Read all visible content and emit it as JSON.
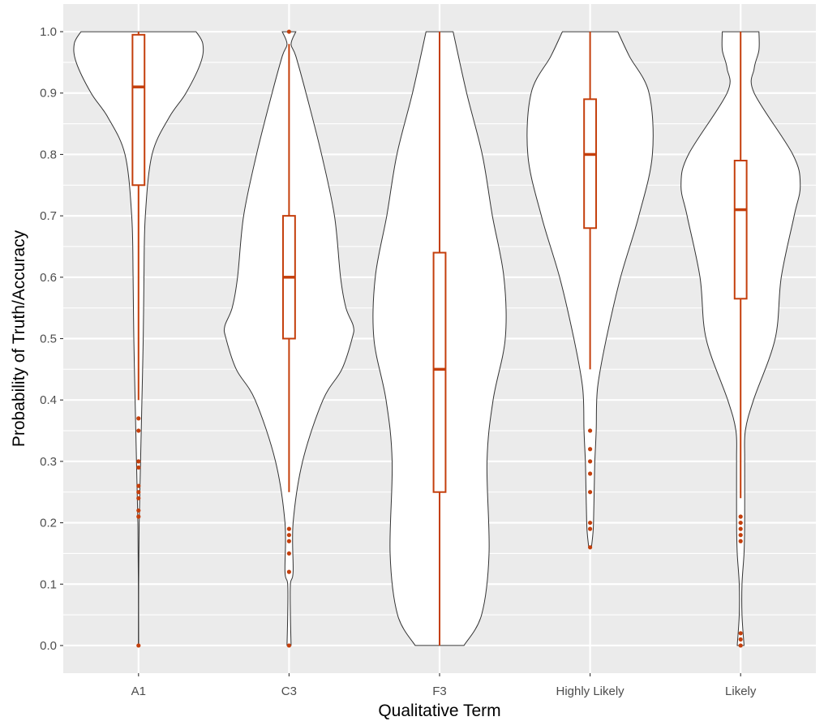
{
  "chart_data": {
    "type": "violin",
    "xlabel": "Qualitative Term",
    "ylabel": "Probability of Truth/Accuracy",
    "ylim": [
      -0.045,
      1.045
    ],
    "y_ticks": [
      "0.0",
      "0.1",
      "0.2",
      "0.3",
      "0.4",
      "0.5",
      "0.6",
      "0.7",
      "0.8",
      "0.9",
      "1.0"
    ],
    "y_tick_values": [
      0,
      0.1,
      0.2,
      0.3,
      0.4,
      0.5,
      0.6,
      0.7,
      0.8,
      0.9,
      1.0
    ],
    "categories": [
      "A1",
      "C3",
      "F3",
      "Highly Likely",
      "Likely"
    ],
    "grid": true,
    "colors": {
      "panel": "#ebebeb",
      "grid": "#ffffff",
      "violin_fill": "#ffffff",
      "violin_line": "#333333",
      "box": "#c43f0c"
    },
    "groups": [
      {
        "name": "A1",
        "violin_profile": [
          [
            0.0,
            0.002
          ],
          [
            0.1,
            0.002
          ],
          [
            0.2,
            0.01
          ],
          [
            0.3,
            0.03
          ],
          [
            0.4,
            0.05
          ],
          [
            0.5,
            0.07
          ],
          [
            0.6,
            0.08
          ],
          [
            0.7,
            0.1
          ],
          [
            0.8,
            0.2
          ],
          [
            0.86,
            0.45
          ],
          [
            0.9,
            0.7
          ],
          [
            0.95,
            0.92
          ],
          [
            0.98,
            0.95
          ],
          [
            1.0,
            0.85
          ]
        ],
        "box": {
          "q1": 0.75,
          "median": 0.91,
          "q3": 0.995,
          "whisker_low": 0.4,
          "whisker_high": 1.0
        },
        "outliers": [
          0.37,
          0.35,
          0.3,
          0.29,
          0.26,
          0.25,
          0.24,
          0.22,
          0.21,
          0.0
        ]
      },
      {
        "name": "C3",
        "violin_profile": [
          [
            0.0,
            0.03
          ],
          [
            0.05,
            0.02
          ],
          [
            0.1,
            0.02
          ],
          [
            0.12,
            0.06
          ],
          [
            0.2,
            0.06
          ],
          [
            0.3,
            0.2
          ],
          [
            0.4,
            0.5
          ],
          [
            0.45,
            0.78
          ],
          [
            0.5,
            0.93
          ],
          [
            0.52,
            0.95
          ],
          [
            0.55,
            0.84
          ],
          [
            0.6,
            0.76
          ],
          [
            0.7,
            0.67
          ],
          [
            0.8,
            0.48
          ],
          [
            0.9,
            0.25
          ],
          [
            0.96,
            0.1
          ],
          [
            0.98,
            0.03
          ],
          [
            1.0,
            0.1
          ]
        ],
        "box": {
          "q1": 0.5,
          "median": 0.6,
          "q3": 0.7,
          "whisker_low": 0.25,
          "whisker_high": 0.98
        },
        "outliers": [
          1.0,
          0.19,
          0.18,
          0.17,
          0.15,
          0.12,
          0.0
        ]
      },
      {
        "name": "F3",
        "violin_profile": [
          [
            0.0,
            0.36
          ],
          [
            0.05,
            0.62
          ],
          [
            0.15,
            0.73
          ],
          [
            0.3,
            0.7
          ],
          [
            0.4,
            0.79
          ],
          [
            0.5,
            0.97
          ],
          [
            0.6,
            0.95
          ],
          [
            0.7,
            0.78
          ],
          [
            0.8,
            0.63
          ],
          [
            0.9,
            0.4
          ],
          [
            1.0,
            0.2
          ]
        ],
        "box": {
          "q1": 0.25,
          "median": 0.45,
          "q3": 0.64,
          "whisker_low": 0.0,
          "whisker_high": 1.0
        },
        "outliers": []
      },
      {
        "name": "Highly Likely",
        "violin_profile": [
          [
            0.16,
            0.02
          ],
          [
            0.18,
            0.04
          ],
          [
            0.2,
            0.05
          ],
          [
            0.25,
            0.06
          ],
          [
            0.3,
            0.07
          ],
          [
            0.35,
            0.09
          ],
          [
            0.42,
            0.11
          ],
          [
            0.5,
            0.24
          ],
          [
            0.6,
            0.45
          ],
          [
            0.7,
            0.72
          ],
          [
            0.8,
            0.92
          ],
          [
            0.9,
            0.87
          ],
          [
            0.96,
            0.58
          ],
          [
            1.0,
            0.41
          ]
        ],
        "box": {
          "q1": 0.68,
          "median": 0.8,
          "q3": 0.89,
          "whisker_low": 0.45,
          "whisker_high": 1.0
        },
        "outliers": [
          0.35,
          0.32,
          0.3,
          0.28,
          0.25,
          0.2,
          0.19,
          0.16
        ]
      },
      {
        "name": "Likely",
        "violin_profile": [
          [
            0.0,
            0.05
          ],
          [
            0.05,
            0.02
          ],
          [
            0.1,
            0.02
          ],
          [
            0.15,
            0.05
          ],
          [
            0.2,
            0.06
          ],
          [
            0.3,
            0.06
          ],
          [
            0.35,
            0.07
          ],
          [
            0.4,
            0.19
          ],
          [
            0.5,
            0.51
          ],
          [
            0.6,
            0.6
          ],
          [
            0.7,
            0.79
          ],
          [
            0.75,
            0.88
          ],
          [
            0.8,
            0.77
          ],
          [
            0.9,
            0.2
          ],
          [
            0.94,
            0.2
          ],
          [
            0.97,
            0.27
          ],
          [
            1.0,
            0.27
          ]
        ],
        "box": {
          "q1": 0.565,
          "median": 0.71,
          "q3": 0.79,
          "whisker_low": 0.24,
          "whisker_high": 1.0
        },
        "outliers": [
          0.21,
          0.2,
          0.19,
          0.18,
          0.17,
          0.02,
          0.01,
          0.0
        ]
      }
    ]
  }
}
